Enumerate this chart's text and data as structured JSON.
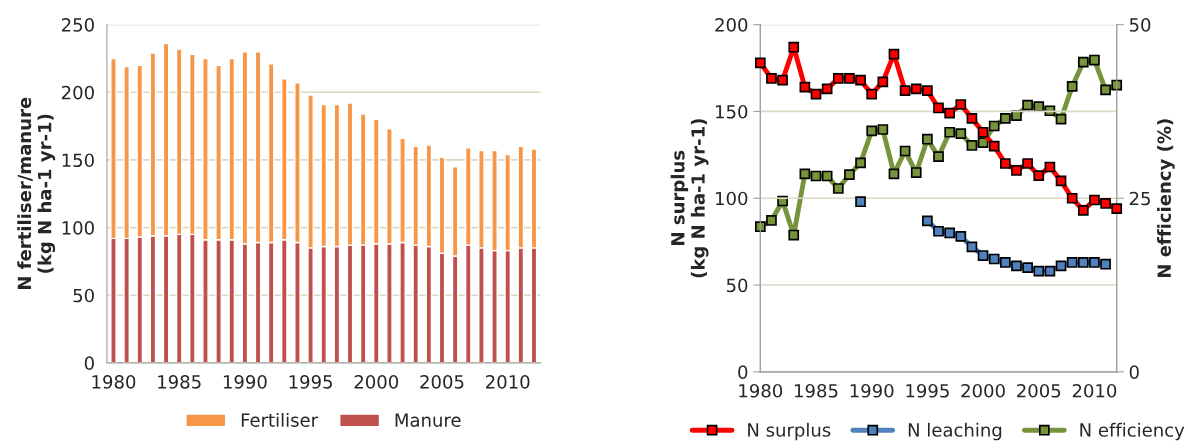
{
  "chart_data": [
    {
      "type": "bar",
      "stacked": true,
      "ylabel": "N fertiliser/manure\n(kg N ha-1 yr-1)",
      "x": [
        1980,
        1981,
        1982,
        1983,
        1984,
        1985,
        1986,
        1987,
        1988,
        1989,
        1990,
        1991,
        1992,
        1993,
        1994,
        1995,
        1996,
        1997,
        1998,
        1999,
        2000,
        2001,
        2002,
        2003,
        2004,
        2005,
        2006,
        2007,
        2008,
        2009,
        2010,
        2011,
        2012
      ],
      "series": [
        {
          "name": "Manure",
          "color": "#c0504d",
          "values": [
            92,
            92,
            93,
            94,
            94,
            95,
            95,
            91,
            91,
            91,
            88,
            89,
            89,
            91,
            89,
            85,
            86,
            86,
            87,
            87,
            88,
            88,
            89,
            87,
            86,
            81,
            79,
            87,
            85,
            83,
            83,
            85,
            85
          ]
        },
        {
          "name": "Fertiliser",
          "color": "#f79646",
          "values": [
            133,
            127,
            127,
            135,
            142,
            137,
            133,
            134,
            129,
            134,
            142,
            141,
            132,
            119,
            118,
            113,
            105,
            105,
            105,
            97,
            92,
            85,
            77,
            73,
            75,
            71,
            66,
            72,
            72,
            74,
            71,
            75,
            73
          ]
        }
      ],
      "xlim": [
        1979.5,
        2012.5
      ],
      "xticks": [
        1980,
        1985,
        1990,
        1995,
        2000,
        2005,
        2010
      ],
      "ylim": [
        0,
        250
      ],
      "yticks": [
        0,
        50,
        100,
        150,
        200,
        250
      ],
      "grid": "y",
      "legend": "bottom"
    },
    {
      "type": "line",
      "ylabel": "N surplus\n(kg N ha-1 yr-1)",
      "y2label": "N efficiency (%)",
      "x": [
        1980,
        1981,
        1982,
        1983,
        1984,
        1985,
        1986,
        1987,
        1988,
        1989,
        1990,
        1991,
        1992,
        1993,
        1994,
        1995,
        1996,
        1997,
        1998,
        1999,
        2000,
        2001,
        2002,
        2003,
        2004,
        2005,
        2006,
        2007,
        2008,
        2009,
        2010,
        2011,
        2012
      ],
      "series": [
        {
          "name": "N surplus",
          "color": "#ff0000",
          "values": [
            178,
            169,
            168,
            187,
            164,
            160,
            163,
            169,
            169,
            168,
            160,
            167,
            183,
            162,
            163,
            162,
            152,
            149,
            154,
            146,
            138,
            130,
            120,
            116,
            120,
            113,
            118,
            110,
            100,
            93,
            99,
            97,
            94
          ]
        },
        {
          "name": "N leaching",
          "color": "#4f81bd",
          "values": [
            null,
            null,
            null,
            null,
            null,
            null,
            null,
            null,
            null,
            98,
            null,
            null,
            null,
            null,
            null,
            87,
            81,
            80,
            78,
            72,
            67,
            65,
            63,
            61,
            60,
            58,
            58,
            61,
            63,
            63,
            63,
            62,
            null
          ]
        },
        {
          "name": "N efficiency",
          "color": "#77933c",
          "axis": "y2",
          "values": [
            20.9,
            21.8,
            24.6,
            19.7,
            28.5,
            28.2,
            28.2,
            26.4,
            28.4,
            30.1,
            34.7,
            34.9,
            28.5,
            31.8,
            28.7,
            33.5,
            31.0,
            34.5,
            34.3,
            32.6,
            33.0,
            35.4,
            36.5,
            36.9,
            38.4,
            38.2,
            37.6,
            36.4,
            41.1,
            44.6,
            44.9,
            40.6,
            41.3
          ]
        }
      ],
      "xlim": [
        1980,
        2012
      ],
      "xticks": [
        1980,
        1985,
        1990,
        1995,
        2000,
        2005,
        2010
      ],
      "ylim": [
        0,
        200
      ],
      "yticks": [
        0,
        50,
        100,
        150,
        200
      ],
      "y2lim": [
        0,
        50
      ],
      "y2ticks": [
        0,
        25,
        50
      ],
      "grid": "y",
      "legend": "bottom",
      "marker": "square",
      "line_style": "solid"
    }
  ]
}
